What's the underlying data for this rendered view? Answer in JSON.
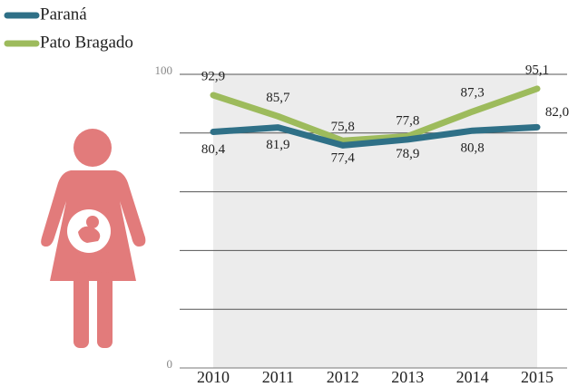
{
  "chart_data": {
    "type": "line",
    "categories": [
      "2010",
      "2011",
      "2012",
      "2013",
      "2014",
      "2015"
    ],
    "series": [
      {
        "name": "Paraná",
        "color": "#2f7087",
        "values": [
          80.4,
          81.9,
          75.8,
          77.8,
          80.8,
          82.0
        ],
        "value_labels": [
          "80,4",
          "81,9",
          "75,8",
          "77,8",
          "80,8",
          "82,0"
        ]
      },
      {
        "name": "Pato Bragado",
        "color": "#9dbb5c",
        "values": [
          92.9,
          85.7,
          77.4,
          78.9,
          87.3,
          95.1
        ],
        "value_labels": [
          "92,9",
          "85,7",
          "77,4",
          "78,9",
          "87,3",
          "95,1"
        ]
      }
    ],
    "ylim": [
      0,
      100
    ],
    "yticks": [
      0,
      100
    ],
    "grid": [
      0,
      20,
      40,
      60,
      80,
      100
    ]
  }
}
